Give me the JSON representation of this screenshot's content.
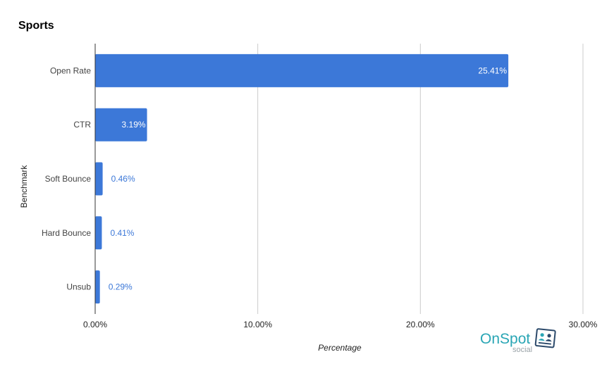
{
  "chart_data": {
    "type": "bar",
    "orientation": "horizontal",
    "title": "Sports",
    "xlabel": "Percentage",
    "ylabel": "Benchmark",
    "categories": [
      "Open Rate",
      "CTR",
      "Soft Bounce",
      "Hard Bounce",
      "Unsub"
    ],
    "values": [
      25.41,
      3.19,
      0.46,
      0.41,
      0.29
    ],
    "data_labels": [
      "25.41%",
      "3.19%",
      "0.46%",
      "0.41%",
      "0.29%"
    ],
    "xlim": [
      0,
      30
    ],
    "x_ticks": [
      0,
      10,
      20,
      30
    ],
    "x_tick_labels": [
      "0.00%",
      "10.00%",
      "20.00%",
      "30.00%"
    ],
    "grid": true,
    "bar_color": "#3c78d8",
    "label_inside_color": "#ffffff",
    "label_outside_color": "#3c78d8"
  },
  "logo": {
    "brand_first": "On",
    "brand_second": "Spot",
    "sub": "social",
    "brand_color": "#2aa6b5",
    "icon": "people-card-icon"
  }
}
